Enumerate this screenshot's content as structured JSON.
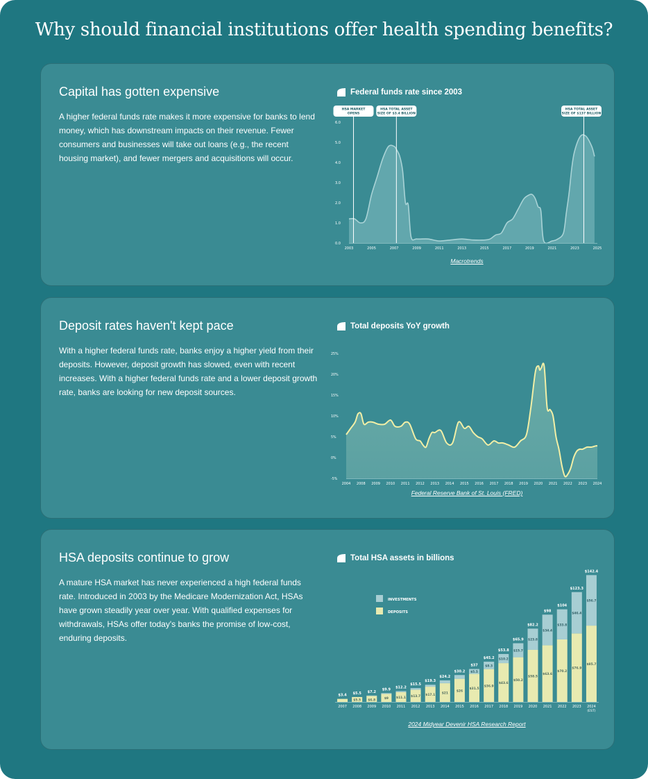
{
  "page": {
    "title": "Why should financial institutions offer health spending benefits?"
  },
  "cards": [
    {
      "heading": "Capital has gotten expensive",
      "body": "A higher federal funds rate makes it more expensive for banks to lend money, which has downstream impacts on their revenue. Fewer consumers and businesses will take out loans (e.g., the recent housing market), and fewer mergers and acquisitions will occur.",
      "chart_title": "Federal funds rate since 2003",
      "source": "Macrotrends"
    },
    {
      "heading": "Deposit rates haven't kept pace",
      "body": "With a higher federal funds rate, banks enjoy a higher yield from their deposits. However, deposit growth has slowed, even with recent increases. With a higher federal funds rate and a lower deposit growth rate, banks are looking for new deposit sources.",
      "chart_title": "Total deposits YoY growth",
      "source": "Federal Reserve Bank of St. Louis (FRED)"
    },
    {
      "heading": "HSA deposits continue to grow",
      "body": "A mature HSA market has never experienced a high federal funds rate. Introduced in 2003 by the Medicare Modernization Act, HSAs have grown steadily year over year. With qualified expenses for withdrawals, HSAs offer today's banks the promise of low-cost, enduring deposits.",
      "chart_title": "Total HSA assets in billions",
      "source": "2024 Midyear Devenir HSA Research Report"
    }
  ],
  "colors": {
    "background": "#1f7781",
    "card": "#3a8b93",
    "area_fill": "#62a7ad",
    "line_light": "#a9d3d6",
    "line_yellow": "#f2efa6",
    "investments": "#a7ced3",
    "deposits": "#e8eab0"
  },
  "chart_data": [
    {
      "type": "area",
      "x_ticks": [
        "2003",
        "2005",
        "2007",
        "2009",
        "2011",
        "2013",
        "2015",
        "2017",
        "2019",
        "2021",
        "2023",
        "2025"
      ],
      "y_ticks": [
        "6.0",
        "5.0",
        "4.0",
        "3.0",
        "2.0",
        "1.0",
        "0.0"
      ],
      "ylim": [
        0,
        6
      ],
      "xlim": [
        2003,
        2025
      ],
      "x": [
        2003,
        2003.5,
        2004,
        2004.5,
        2005,
        2005.5,
        2006,
        2006.5,
        2007,
        2007.25,
        2007.5,
        2007.75,
        2008,
        2008.25,
        2008.5,
        2009,
        2010,
        2011,
        2012,
        2013,
        2014,
        2015,
        2015.5,
        2016,
        2016.5,
        2017,
        2017.5,
        2018,
        2018.5,
        2019,
        2019.25,
        2019.5,
        2019.75,
        2020,
        2020.25,
        2021,
        2021.5,
        2022,
        2022.25,
        2022.5,
        2022.75,
        2023,
        2023.5,
        2024,
        2024.5,
        2024.75
      ],
      "y": [
        1.2,
        1.2,
        1.0,
        1.2,
        2.4,
        3.3,
        4.2,
        4.8,
        4.8,
        4.6,
        4.3,
        3.6,
        2.0,
        1.9,
        0.3,
        0.2,
        0.2,
        0.1,
        0.15,
        0.2,
        0.15,
        0.15,
        0.2,
        0.4,
        0.5,
        1.0,
        1.2,
        1.7,
        2.2,
        2.4,
        2.4,
        2.2,
        1.8,
        1.6,
        0.1,
        0.1,
        0.2,
        0.5,
        1.5,
        2.5,
        3.8,
        4.6,
        5.3,
        5.3,
        4.8,
        4.3
      ],
      "annotations": [
        {
          "x": 2003.4,
          "label_lines": [
            "HSA MARKET",
            "OPENS"
          ]
        },
        {
          "x": 2007.2,
          "label_lines": [
            "HSA TOTAL ASSET",
            "SIZE OF $3.4 BILLION"
          ]
        },
        {
          "x": 2023.8,
          "label_lines": [
            "HSA TOTAL ASSET",
            "SIZE OF $137 BILLION"
          ]
        }
      ]
    },
    {
      "type": "line",
      "x_ticks": [
        "2004",
        "2008",
        "2009",
        "2010",
        "2011",
        "2012",
        "2013",
        "2014",
        "2015",
        "2016",
        "2017",
        "2018",
        "2019",
        "2020",
        "2021",
        "2022",
        "2023",
        "2024"
      ],
      "y_ticks": [
        "25%",
        "20%",
        "15%",
        "10%",
        "5%",
        "0%",
        "-5%"
      ],
      "ylim": [
        -5,
        25
      ],
      "x": [
        0,
        0.3,
        0.6,
        0.8,
        1.0,
        1.2,
        1.5,
        1.8,
        2.2,
        2.6,
        3.0,
        3.3,
        3.7,
        4.0,
        4.3,
        4.7,
        5.0,
        5.2,
        5.4,
        5.6,
        5.8,
        6.0,
        6.4,
        6.8,
        7.2,
        7.6,
        8.0,
        8.3,
        8.6,
        8.9,
        9.2,
        9.6,
        10.0,
        10.3,
        10.6,
        11.0,
        11.4,
        11.8,
        12.2,
        12.5,
        12.8,
        13.0,
        13.1,
        13.2,
        13.4,
        13.6,
        13.8,
        14.0,
        14.2,
        14.4,
        14.6,
        14.8,
        15.0,
        15.2,
        15.4,
        15.6,
        15.8,
        16.0,
        16.3,
        16.6,
        16.9,
        17.0
      ],
      "y": [
        5.5,
        7.0,
        8.5,
        10.5,
        10.5,
        8.0,
        8.5,
        8.5,
        8.0,
        8.0,
        9.0,
        7.5,
        7.5,
        8.5,
        8.0,
        4.5,
        4.0,
        3.0,
        2.5,
        4.5,
        6.0,
        6.0,
        6.5,
        3.5,
        3.5,
        8.5,
        7.0,
        7.5,
        6.0,
        5.0,
        4.5,
        3.0,
        4.0,
        3.5,
        3.5,
        3.0,
        2.5,
        4.0,
        5.5,
        12.0,
        20.5,
        22.0,
        21.0,
        21.5,
        22.0,
        12.0,
        11.5,
        10.0,
        5.0,
        2.0,
        -2.0,
        -4.5,
        -4.0,
        -2.5,
        0.0,
        1.5,
        2.0,
        2.0,
        2.5,
        2.5,
        2.8,
        2.8
      ]
    },
    {
      "type": "bar",
      "stacked": true,
      "categories": [
        "2007",
        "2008",
        "2009",
        "2010",
        "2011",
        "2012",
        "2013",
        "2014",
        "2015",
        "2016",
        "2017",
        "2018",
        "2019",
        "2020",
        "2021",
        "2022",
        "2023",
        "2024"
      ],
      "category_sublabels": {
        "2024": "(EST)"
      },
      "totals": [
        3.4,
        5.5,
        7.2,
        9.9,
        12.2,
        15.5,
        19.3,
        24.2,
        30.2,
        37,
        45.2,
        53.8,
        65.9,
        82.2,
        98,
        104,
        123.3,
        142.4
      ],
      "total_labels": [
        "$3.4",
        "$5.5",
        "$7.2",
        "$9.9",
        "$12.2",
        "$15.5",
        "$19.3",
        "$24.2",
        "$30.2",
        "$37",
        "$45.2",
        "$53.8",
        "$65.9",
        "$82.2",
        "$98",
        "$104",
        "$123.3",
        "$142.4"
      ],
      "series": [
        {
          "name": "DEPOSITS",
          "values": [
            3.4,
            5.5,
            6.8,
            9,
            11.1,
            13.7,
            17.1,
            21,
            26,
            31.5,
            36.9,
            43.6,
            50.2,
            58.5,
            63.6,
            70.2,
            76.9,
            85.7
          ],
          "labels": [
            "",
            "$5.5",
            "$6.8",
            "$9",
            "$11.1",
            "$13.7",
            "$17.1",
            "$21",
            "$26",
            "$31.5",
            "$36.9",
            "$43.6",
            "$50.2",
            "$58.5",
            "$63.6",
            "$70.2",
            "$76.9",
            "$85.7"
          ]
        },
        {
          "name": "INVESTMENTS",
          "values": [
            0,
            0,
            0.4,
            0.9,
            1.1,
            1.8,
            2.2,
            3.2,
            4.2,
            5.5,
            8.3,
            10.2,
            15.7,
            23.8,
            34.4,
            33.8,
            46.4,
            56.7
          ],
          "labels": [
            "",
            "",
            "",
            "",
            "",
            "",
            "",
            "",
            "",
            "$5.5",
            "$8.3",
            "$10.2",
            "$15.7",
            "$23.8",
            "$34.4",
            "$33.8",
            "$46.4",
            "$56.7"
          ]
        }
      ],
      "ylim": [
        0,
        145
      ]
    }
  ]
}
